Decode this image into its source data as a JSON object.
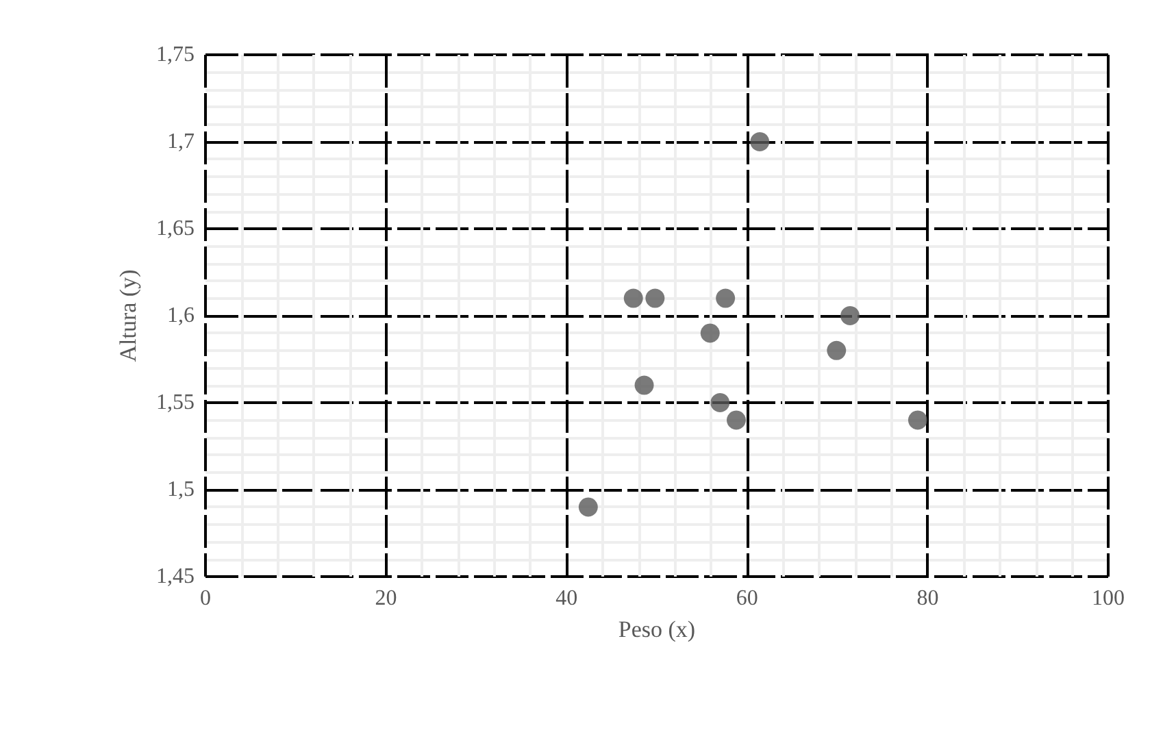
{
  "chart_data": {
    "type": "scatter",
    "xlabel": "Peso (x)",
    "ylabel": "Altura (y)",
    "x": [
      47.4,
      49.8,
      57.6,
      55.9,
      48.6,
      57.0,
      58.8,
      42.4,
      61.4,
      71.4,
      69.9,
      78.9
    ],
    "series": [
      {
        "color": "#595959",
        "values": [
          1.61,
          1.61,
          1.61,
          1.59,
          1.56,
          1.55,
          1.54,
          1.49,
          1.7,
          1.6,
          1.58,
          1.54
        ]
      }
    ],
    "xlim": [
      0,
      100
    ],
    "xticks": [
      0,
      20,
      40,
      60,
      80,
      100
    ],
    "ylim": [
      1.45,
      1.75
    ],
    "yticks": [
      {
        "value": 1.45,
        "label": "1,45"
      },
      {
        "value": 1.5,
        "label": "1,5"
      },
      {
        "value": 1.55,
        "label": "1,55"
      },
      {
        "value": 1.6,
        "label": "1,6"
      },
      {
        "value": 1.65,
        "label": "1,65"
      },
      {
        "value": 1.7,
        "label": "1,7"
      },
      {
        "value": 1.75,
        "label": "1,75"
      }
    ],
    "grid": true,
    "marker": "circle"
  }
}
